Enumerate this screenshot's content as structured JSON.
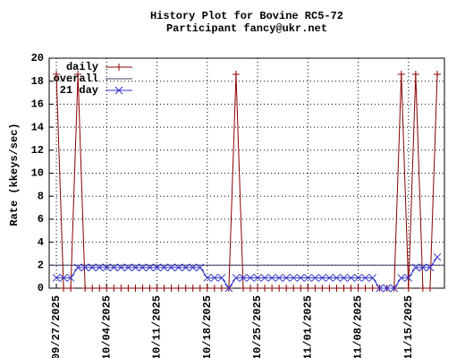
{
  "chart_data": {
    "type": "line",
    "title": "History Plot for Bovine RC5-72",
    "subtitle": "Participant fancy@ukr.net",
    "y_label": "Rate (kkeys/sec)",
    "x": [
      "2025-09-27",
      "2025-09-28",
      "2025-09-29",
      "2025-09-30",
      "2025-10-01",
      "2025-10-02",
      "2025-10-03",
      "2025-10-04",
      "2025-10-05",
      "2025-10-06",
      "2025-10-07",
      "2025-10-08",
      "2025-10-09",
      "2025-10-10",
      "2025-10-11",
      "2025-10-12",
      "2025-10-13",
      "2025-10-14",
      "2025-10-15",
      "2025-10-16",
      "2025-10-17",
      "2025-10-18",
      "2025-10-19",
      "2025-10-20",
      "2025-10-21",
      "2025-10-22",
      "2025-10-23",
      "2025-10-24",
      "2025-10-25",
      "2025-10-26",
      "2025-10-27",
      "2025-10-28",
      "2025-10-29",
      "2025-10-30",
      "2025-10-31",
      "2025-11-01",
      "2025-11-02",
      "2025-11-03",
      "2025-11-04",
      "2025-11-05",
      "2025-11-06",
      "2025-11-07",
      "2025-11-08",
      "2025-11-09",
      "2025-11-10",
      "2025-11-11",
      "2025-11-12",
      "2025-11-13",
      "2025-11-14",
      "2025-11-15",
      "2025-11-16",
      "2025-11-17",
      "2025-11-18",
      "2025-11-19"
    ],
    "series": [
      {
        "name": "daily",
        "color": "#8b0000",
        "marker": "plus",
        "values": [
          18.6,
          0,
          0,
          18.6,
          0,
          0,
          0,
          0,
          0,
          0,
          0,
          0,
          0,
          0,
          0,
          0,
          0,
          0,
          0,
          0,
          0,
          0,
          0,
          0,
          0,
          18.6,
          0,
          0,
          0,
          0,
          0,
          0,
          0,
          0,
          0,
          0,
          0,
          0,
          0,
          0,
          0,
          0,
          0,
          0,
          0,
          0,
          0,
          0,
          18.6,
          0,
          18.6,
          0,
          0,
          18.6
        ]
      },
      {
        "name": "21 day",
        "color": "#3333cc",
        "marker": "cross",
        "values": [
          0.9,
          0.9,
          0.9,
          1.8,
          1.8,
          1.8,
          1.8,
          1.8,
          1.8,
          1.8,
          1.8,
          1.8,
          1.8,
          1.8,
          1.8,
          1.8,
          1.8,
          1.8,
          1.8,
          1.8,
          1.8,
          0.9,
          0.9,
          0.9,
          0,
          0.9,
          0.9,
          0.9,
          0.9,
          0.9,
          0.9,
          0.9,
          0.9,
          0.9,
          0.9,
          0.9,
          0.9,
          0.9,
          0.9,
          0.9,
          0.9,
          0.9,
          0.9,
          0.9,
          0.9,
          0,
          0,
          0,
          0.9,
          0.9,
          1.8,
          1.8,
          1.8,
          2.7
        ]
      }
    ],
    "overall": {
      "name": "overall",
      "color": "#3c3c64",
      "value": 2
    },
    "xlim": [
      "2025-09-26",
      "2025-11-20"
    ],
    "xticks": [
      {
        "value": "2025-09-27",
        "label": "09/27/2025"
      },
      {
        "value": "2025-10-04",
        "label": "10/04/2025"
      },
      {
        "value": "2025-10-11",
        "label": "10/11/2025"
      },
      {
        "value": "2025-10-18",
        "label": "10/18/2025"
      },
      {
        "value": "2025-10-25",
        "label": "10/25/2025"
      },
      {
        "value": "2025-11-01",
        "label": "11/01/2025"
      },
      {
        "value": "2025-11-08",
        "label": "11/08/2025"
      },
      {
        "value": "2025-11-15",
        "label": "11/15/2025"
      }
    ],
    "ylim": [
      0,
      20
    ],
    "yticks": [
      0,
      2,
      4,
      6,
      8,
      10,
      12,
      14,
      16,
      18,
      20
    ],
    "grid": true
  }
}
